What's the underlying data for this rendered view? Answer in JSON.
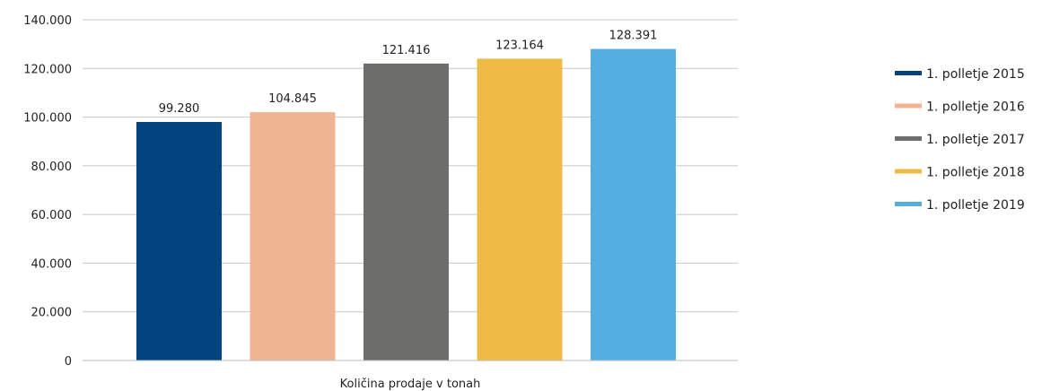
{
  "chart_data": {
    "type": "bar",
    "title": "",
    "xlabel": "Količina prodaje v tonah",
    "ylabel": "",
    "ylim": [
      0,
      140000
    ],
    "yticks": [
      0,
      20000,
      40000,
      60000,
      80000,
      100000,
      120000,
      140000
    ],
    "ytick_labels": [
      "0",
      "20.000",
      "40.000",
      "60.000",
      "80.000",
      "100.000",
      "120.000",
      "140.000"
    ],
    "grid": true,
    "legend_position": "right",
    "series": [
      {
        "name": "1. polletje 2015",
        "value": 98000,
        "label": "99.280",
        "color": "#03447F"
      },
      {
        "name": "1. polletje 2016",
        "value": 102000,
        "label": "104.845",
        "color": "#EFB592"
      },
      {
        "name": "1. polletje 2017",
        "value": 122000,
        "label": "121.416",
        "color": "#6D6E6C"
      },
      {
        "name": "1. polletje 2018",
        "value": 124000,
        "label": "123.164",
        "color": "#F0BB45"
      },
      {
        "name": "1. polletje 2019",
        "value": 128000,
        "label": "128.391",
        "color": "#55AEE0"
      }
    ]
  }
}
